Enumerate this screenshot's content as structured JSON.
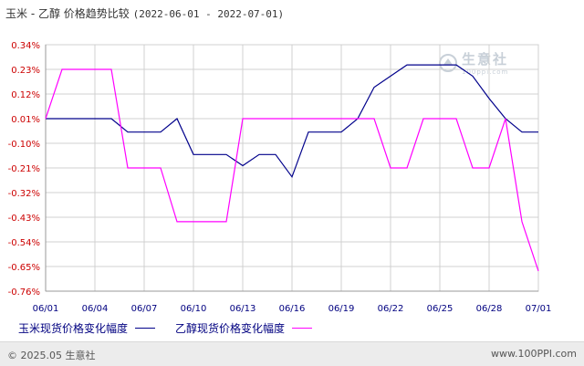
{
  "header": {
    "title": "玉米 - 乙醇 价格趋势比较",
    "date_range": "(2022-06-01 - 2022-07-01)"
  },
  "watermark": {
    "text": "生意社",
    "sub": "100ppi.com"
  },
  "chart_data": {
    "type": "line",
    "x": [
      "06/01",
      "06/02",
      "06/03",
      "06/04",
      "06/05",
      "06/06",
      "06/07",
      "06/08",
      "06/09",
      "06/10",
      "06/11",
      "06/12",
      "06/13",
      "06/14",
      "06/15",
      "06/16",
      "06/17",
      "06/18",
      "06/19",
      "06/20",
      "06/21",
      "06/22",
      "06/23",
      "06/24",
      "06/25",
      "06/26",
      "06/27",
      "06/28",
      "06/29",
      "06/30",
      "07/01"
    ],
    "x_tick_labels": [
      "06/01",
      "06/04",
      "06/07",
      "06/10",
      "06/13",
      "06/16",
      "06/19",
      "06/22",
      "06/25",
      "06/28",
      "07/01"
    ],
    "y_tick_labels": [
      "0.34%",
      "0.23%",
      "0.12%",
      "0.01%",
      "-0.10%",
      "-0.21%",
      "-0.32%",
      "-0.43%",
      "-0.54%",
      "-0.65%",
      "-0.76%"
    ],
    "ylim": [
      -0.76,
      0.34
    ],
    "grid": true,
    "legend_position": "bottom",
    "series": [
      {
        "name": "玉米现货价格变化幅度",
        "color": "#00008b",
        "values": [
          0.01,
          0.01,
          0.01,
          0.01,
          0.01,
          -0.05,
          -0.05,
          -0.05,
          0.01,
          -0.15,
          -0.15,
          -0.15,
          -0.2,
          -0.15,
          -0.15,
          -0.25,
          -0.05,
          -0.05,
          -0.05,
          0.01,
          0.15,
          0.2,
          0.25,
          0.25,
          0.25,
          0.25,
          0.2,
          0.1,
          0.01,
          -0.05,
          -0.05
        ]
      },
      {
        "name": "乙醇现货价格变化幅度",
        "color": "#ff00ff",
        "values": [
          0.01,
          0.23,
          0.23,
          0.23,
          0.23,
          -0.21,
          -0.21,
          -0.21,
          -0.45,
          -0.45,
          -0.45,
          -0.45,
          0.01,
          0.01,
          0.01,
          0.01,
          0.01,
          0.01,
          0.01,
          0.01,
          0.01,
          -0.21,
          -0.21,
          0.01,
          0.01,
          0.01,
          -0.21,
          -0.21,
          0.01,
          -0.45,
          -0.67
        ]
      }
    ]
  },
  "footer": {
    "copyright": "© 2025.05 生意社",
    "url": "www.100PPI.com"
  }
}
